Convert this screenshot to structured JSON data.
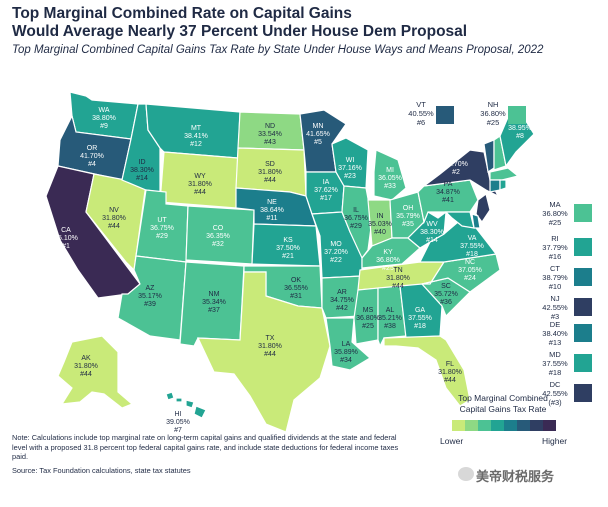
{
  "title_line1": "Top Marginal Combined Rate on Capital Gains",
  "title_line2": "Would Average Nearly 37 Percent Under House Dem Proposal",
  "subtitle": "Top Marginal Combined Capital Gains Tax Rate by State Under House Ways and Means Proposal, 2022",
  "colors": {
    "c1": "#c9ea79",
    "c2": "#8ed984",
    "c3": "#4cc294",
    "c4": "#22a493",
    "c5": "#1c7e8c",
    "c6": "#275a79",
    "c7": "#2f3e62",
    "c8": "#3a2a54"
  },
  "states": {
    "WA": {
      "rate": "38.80%",
      "rank": "#9"
    },
    "OR": {
      "rate": "41.70%",
      "rank": "#4"
    },
    "CA": {
      "rate": "45.10%",
      "rank": "#1"
    },
    "NV": {
      "rate": "31.80%",
      "rank": "#44"
    },
    "ID": {
      "rate": "38.30%",
      "rank": "#14"
    },
    "MT": {
      "rate": "38.41%",
      "rank": "#12"
    },
    "WY": {
      "rate": "31.80%",
      "rank": "#44"
    },
    "UT": {
      "rate": "36.75%",
      "rank": "#29"
    },
    "AZ": {
      "rate": "35.17%",
      "rank": "#39"
    },
    "CO": {
      "rate": "36.35%",
      "rank": "#32"
    },
    "NM": {
      "rate": "35.34%",
      "rank": "#37"
    },
    "ND": {
      "rate": "33.54%",
      "rank": "#43"
    },
    "SD": {
      "rate": "31.80%",
      "rank": "#44"
    },
    "NE": {
      "rate": "38.64%",
      "rank": "#11"
    },
    "KS": {
      "rate": "37.50%",
      "rank": "#21"
    },
    "OK": {
      "rate": "36.55%",
      "rank": "#31"
    },
    "TX": {
      "rate": "31.80%",
      "rank": "#44"
    },
    "MN": {
      "rate": "41.65%",
      "rank": "#5"
    },
    "IA": {
      "rate": "37.62%",
      "rank": "#17"
    },
    "MO": {
      "rate": "37.20%",
      "rank": "#22"
    },
    "AR": {
      "rate": "34.75%",
      "rank": "#42"
    },
    "LA": {
      "rate": "35.89%",
      "rank": "#34"
    },
    "WI": {
      "rate": "37.16%",
      "rank": "#23"
    },
    "IL": {
      "rate": "36.75%",
      "rank": "#29"
    },
    "MI": {
      "rate": "36.05%",
      "rank": "#33"
    },
    "IN": {
      "rate": "35.03%",
      "rank": "#40"
    },
    "OH": {
      "rate": "35.79%",
      "rank": "#35"
    },
    "KY": {
      "rate": "36.80%",
      "rank": "#25"
    },
    "TN": {
      "rate": "31.80%",
      "rank": "#44"
    },
    "MS": {
      "rate": "36.80%",
      "rank": "#25"
    },
    "AL": {
      "rate": "35.21%",
      "rank": "#38"
    },
    "GA": {
      "rate": "37.55%",
      "rank": "#18"
    },
    "FL": {
      "rate": "31.80%",
      "rank": "#44"
    },
    "SC": {
      "rate": "35.72%",
      "rank": "#36"
    },
    "NC": {
      "rate": "37.05%",
      "rank": "#24"
    },
    "VA": {
      "rate": "37.55%",
      "rank": "#18"
    },
    "WV": {
      "rate": "38.30%",
      "rank": "#14"
    },
    "PA": {
      "rate": "34.87%",
      "rank": "#41"
    },
    "NY": {
      "rate": "42.70%",
      "rank": "#2"
    },
    "ME": {
      "rate": "38.95%",
      "rank": "#8"
    },
    "AK": {
      "rate": "31.80%",
      "rank": "#44"
    },
    "HI": {
      "rate": "39.05%",
      "rank": "#7"
    },
    "VT": {
      "rate": "40.55%",
      "rank": "#6"
    },
    "NH": {
      "rate": "36.80%",
      "rank": "#25"
    },
    "MA": {
      "rate": "36.80%",
      "rank": "#25"
    },
    "RI": {
      "rate": "37.79%",
      "rank": "#16"
    },
    "CT": {
      "rate": "38.79%",
      "rank": "#10"
    },
    "NJ": {
      "rate": "42.55%",
      "rank": "#3"
    },
    "DE": {
      "rate": "38.40%",
      "rank": "#13"
    },
    "MD": {
      "rate": "37.55%",
      "rank": "#18"
    },
    "DC": {
      "rate": "42.55%",
      "rank": "(#3)"
    }
  },
  "legend": {
    "title_line1": "Top Marginal Combined",
    "title_line2": "Capital Gains Tax Rate",
    "low": "Lower",
    "high": "Higher"
  },
  "note": "Note: Calculations include top marginal rate on long-term capital gains and qualified dividends at the state and federal level with a proposed 31.8 percent top federal capital gains rate, and include state deductions for federal income taxes paid.",
  "source": "Source: Tax Foundation calculations, state tax statutes",
  "watermark": "美帝财税服务"
}
